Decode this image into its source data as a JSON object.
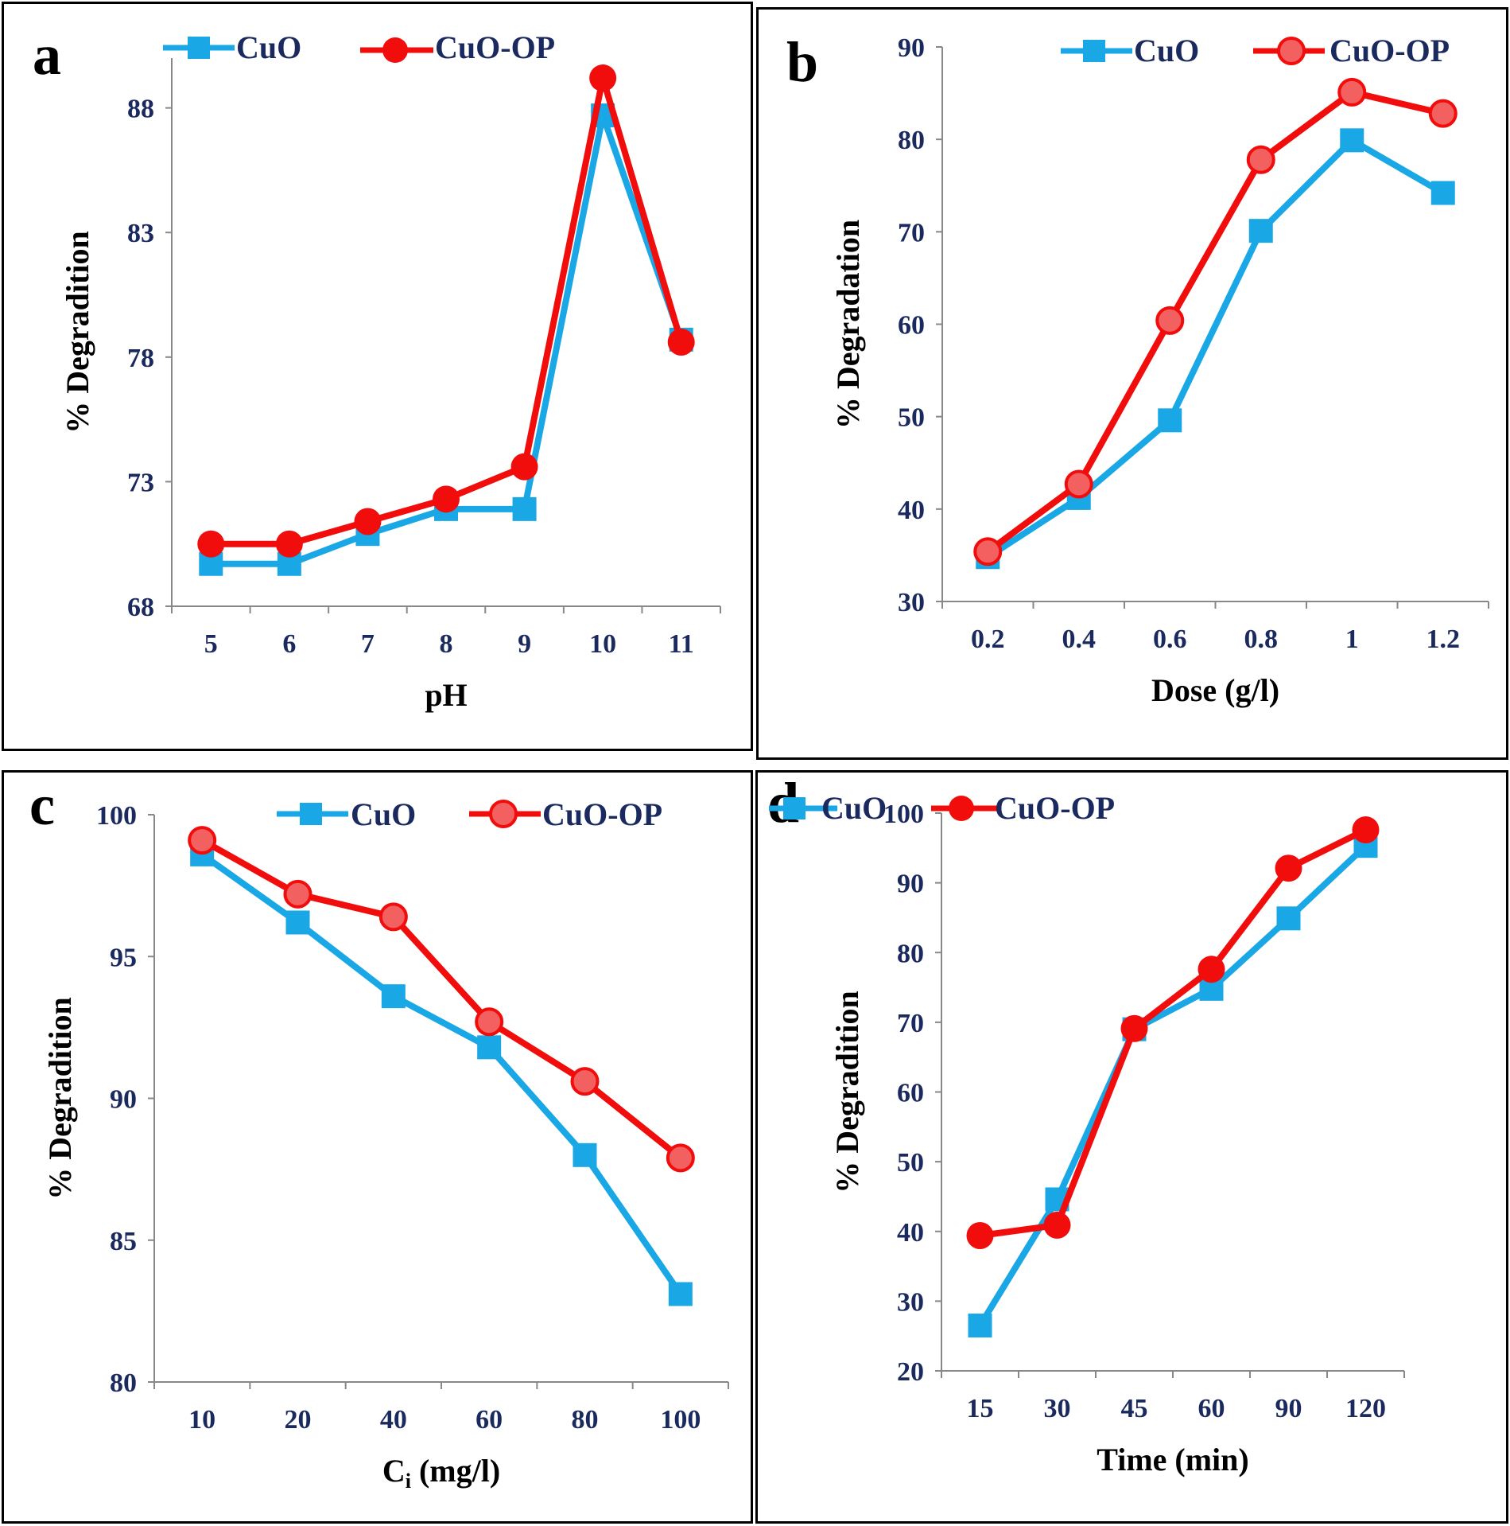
{
  "colors": {
    "cuo": "#1aa7e6",
    "cuo_op": "#f20d0d",
    "tick": "#1b2a5e",
    "axis": "#888888"
  },
  "chart_data": [
    {
      "type": "line",
      "panel_label": "a",
      "title": "",
      "xlabel": "pH",
      "ylabel": "% Degradition",
      "categories": [
        "5",
        "6",
        "7",
        "8",
        "9",
        "10",
        "11"
      ],
      "ylim": [
        68,
        90
      ],
      "yticks": [
        "68",
        "73",
        "78",
        "83",
        "88"
      ],
      "series": [
        {
          "name": "CuO",
          "marker": "square",
          "values": [
            69.7,
            69.7,
            70.9,
            71.9,
            71.9,
            87.7,
            78.7
          ]
        },
        {
          "name": "CuO-OP",
          "marker": "circle",
          "values": [
            70.5,
            70.5,
            71.4,
            72.3,
            73.6,
            89.2,
            78.6
          ]
        }
      ]
    },
    {
      "type": "line",
      "panel_label": "b",
      "title": "",
      "xlabel": "Dose (g/l)",
      "ylabel": "% Degradation",
      "categories": [
        "0.2",
        "0.4",
        "0.6",
        "0.8",
        "1",
        "1.2"
      ],
      "ylim": [
        30,
        90
      ],
      "yticks": [
        "30",
        "40",
        "50",
        "60",
        "70",
        "80",
        "90"
      ],
      "series": [
        {
          "name": "CuO",
          "marker": "square",
          "values": [
            34.8,
            41.2,
            49.6,
            70.1,
            79.9,
            74.2
          ]
        },
        {
          "name": "CuO-OP",
          "marker": "circle",
          "values": [
            35.4,
            42.7,
            60.4,
            77.8,
            85.1,
            82.8
          ]
        }
      ]
    },
    {
      "type": "line",
      "panel_label": "c",
      "title": "",
      "xlabel_main": "C",
      "xlabel_sub": "i",
      "xlabel_rest": " (mg/l)",
      "ylabel": "% Degradition",
      "categories": [
        "10",
        "20",
        "40",
        "60",
        "80",
        "100"
      ],
      "ylim": [
        80,
        100
      ],
      "yticks": [
        "80",
        "85",
        "90",
        "95",
        "100"
      ],
      "series": [
        {
          "name": "CuO",
          "marker": "square",
          "values": [
            98.6,
            96.2,
            93.6,
            91.8,
            88.0,
            83.1
          ]
        },
        {
          "name": "CuO-OP",
          "marker": "circle",
          "values": [
            99.1,
            97.2,
            96.4,
            92.7,
            90.6,
            87.9
          ]
        }
      ]
    },
    {
      "type": "line",
      "panel_label": "d",
      "title": "",
      "xlabel": "Time (min)",
      "ylabel": "% Degradition",
      "categories": [
        "15",
        "30",
        "45",
        "60",
        "90",
        "120"
      ],
      "ylim": [
        20,
        100
      ],
      "yticks": [
        "20",
        "30",
        "40",
        "50",
        "60",
        "70",
        "80",
        "90",
        "100"
      ],
      "series": [
        {
          "name": "CuO",
          "marker": "square",
          "values": [
            26.5,
            44.6,
            69.0,
            74.8,
            84.9,
            95.3
          ]
        },
        {
          "name": "CuO-OP",
          "marker": "circle",
          "values": [
            39.4,
            40.9,
            69.1,
            77.6,
            92.1,
            97.6
          ]
        }
      ]
    }
  ]
}
